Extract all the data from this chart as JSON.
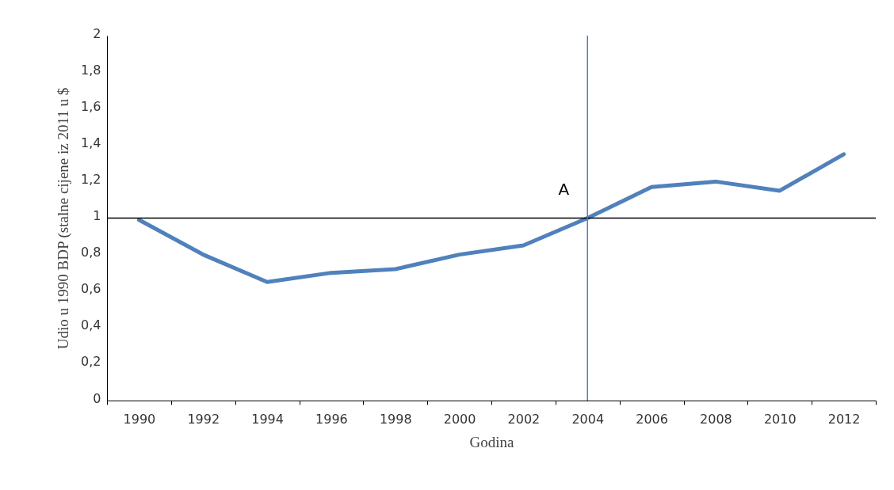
{
  "chart_data": {
    "type": "line",
    "xlabel": "Godina",
    "ylabel": "Udio u 1990 BDP (stalne cijene iz 2011 u $",
    "categories": [
      "1990",
      "1992",
      "1994",
      "1996",
      "1998",
      "2000",
      "2002",
      "2004",
      "2006",
      "2008",
      "2010",
      "2012"
    ],
    "series": [
      {
        "color": "#4f81bd",
        "values": [
          0.99,
          0.8,
          0.65,
          0.7,
          0.72,
          0.8,
          0.85,
          1.0,
          1.17,
          1.2,
          1.15,
          1.35
        ]
      }
    ],
    "ylim": [
      0,
      2
    ],
    "yticks": [
      0,
      {
        "value": 0.2,
        "label": "0,2"
      },
      {
        "value": 0.4,
        "label": "0,4"
      },
      {
        "value": 0.6,
        "label": "0,6"
      },
      {
        "value": 0.8,
        "label": "0,8"
      },
      1,
      {
        "value": 1.2,
        "label": "1,2"
      },
      {
        "value": 1.4,
        "label": "1,4"
      },
      {
        "value": 1.6,
        "label": "1,6"
      },
      {
        "value": 1.8,
        "label": "1,8"
      },
      2
    ],
    "ref_lines": [
      {
        "axis": "y",
        "value": 1,
        "color": "#000000"
      },
      {
        "axis": "x",
        "value": "2004",
        "label": "A",
        "color": "#4f81bd"
      }
    ],
    "grid": false,
    "marker": "none",
    "line_style": "solid"
  }
}
